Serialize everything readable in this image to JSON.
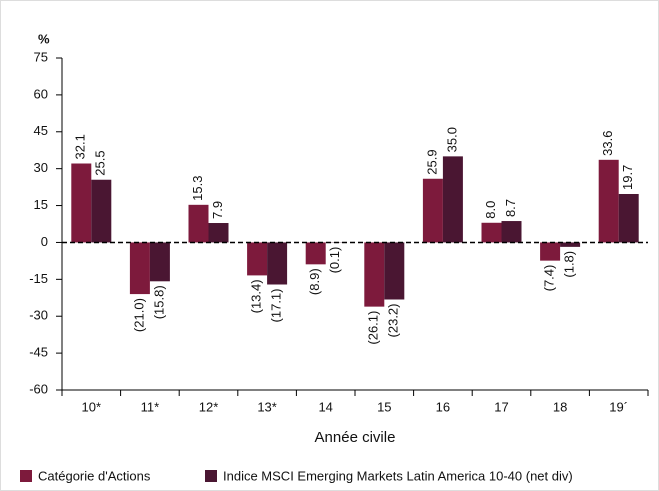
{
  "chart_data": {
    "type": "bar",
    "y_label": "%",
    "x_label": "Année civile",
    "categories": [
      "10*",
      "11*",
      "12*",
      "13*",
      "14",
      "15",
      "16",
      "17",
      "18",
      "19´"
    ],
    "series": [
      {
        "name": "Catégorie d'Actions",
        "color": "#7d1a3c",
        "values": [
          32.1,
          -21.0,
          15.3,
          -13.4,
          -8.9,
          -26.1,
          25.9,
          8.0,
          -7.4,
          33.6
        ],
        "value_labels": [
          "32.1",
          "(21.0)",
          "15.3",
          "(13.4)",
          "(8.9)",
          "(26.1)",
          "25.9",
          "8.0",
          "(7.4)",
          "33.6"
        ]
      },
      {
        "name": "Indice MSCI Emerging Markets Latin America 10-40 (net div)",
        "color": "#4a1632",
        "values": [
          25.5,
          -15.8,
          7.9,
          -17.1,
          -0.1,
          -23.2,
          35.0,
          8.7,
          -1.8,
          19.7
        ],
        "value_labels": [
          "25.5",
          "(15.8)",
          "7.9",
          "(17.1)",
          "(0.1)",
          "(23.2)",
          "35.0",
          "8.7",
          "(1.8)",
          "19.7"
        ]
      }
    ],
    "ylim": [
      -60,
      75
    ],
    "yticks": [
      -60,
      -45,
      -30,
      -15,
      0,
      15,
      30,
      45,
      60,
      75
    ],
    "legend": "bottom"
  }
}
